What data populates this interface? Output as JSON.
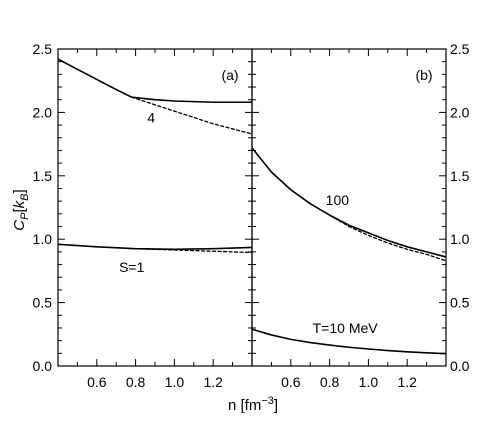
{
  "chart_data": [
    {
      "type": "line",
      "panel_label": "(a)",
      "xlabel": "n [fm⁻³]",
      "ylabel": "C_P [k_B]",
      "xlim": [
        0.4,
        1.4
      ],
      "ylim": [
        0.0,
        2.5
      ],
      "xticks": [
        0.6,
        0.8,
        1.0,
        1.2
      ],
      "yticks": [
        0.0,
        0.5,
        1.0,
        1.5,
        2.0,
        2.5
      ],
      "ytick_labels": [
        "0.0",
        "0.5",
        "1.0",
        "1.5",
        "2.0",
        "2.5"
      ],
      "xtick_labels": [
        "0.6",
        "0.8",
        "1.0",
        "1.2"
      ],
      "series": [
        {
          "label": "4",
          "style": "solid",
          "x": [
            0.4,
            0.5,
            0.6,
            0.7,
            0.78
          ],
          "y": [
            2.42,
            2.34,
            2.26,
            2.18,
            2.12
          ]
        },
        {
          "label": "4",
          "style": "solid",
          "x": [
            0.78,
            0.9,
            1.0,
            1.1,
            1.2,
            1.3,
            1.4
          ],
          "y": [
            2.12,
            2.1,
            2.09,
            2.085,
            2.08,
            2.08,
            2.08
          ]
        },
        {
          "label": "4",
          "style": "dashed",
          "x": [
            0.78,
            0.9,
            1.0,
            1.1,
            1.2,
            1.3,
            1.4
          ],
          "y": [
            2.12,
            2.06,
            2.01,
            1.96,
            1.91,
            1.87,
            1.83
          ]
        },
        {
          "label": "S=1",
          "style": "solid",
          "x": [
            0.4,
            0.6,
            0.8,
            1.0,
            1.2,
            1.4
          ],
          "y": [
            0.96,
            0.94,
            0.925,
            0.92,
            0.925,
            0.935
          ]
        },
        {
          "label": "S=1",
          "style": "dashed",
          "x": [
            0.8,
            1.0,
            1.2,
            1.4
          ],
          "y": [
            0.925,
            0.915,
            0.905,
            0.895
          ]
        }
      ],
      "annotations": [
        {
          "text": "4",
          "x": 0.88,
          "y": 1.96
        },
        {
          "text": "S=1",
          "x": 0.78,
          "y": 0.78
        }
      ]
    },
    {
      "type": "line",
      "panel_label": "(b)",
      "xlim": [
        0.4,
        1.4
      ],
      "ylim": [
        0.0,
        2.5
      ],
      "xticks": [
        0.6,
        0.8,
        1.0,
        1.2
      ],
      "yticks": [
        0.0,
        0.5,
        1.0,
        1.5,
        2.0,
        2.5
      ],
      "ytick_labels": [
        "0.0",
        "0.5",
        "1.0",
        "1.5",
        "2.0",
        "2.5"
      ],
      "xtick_labels": [
        "0.6",
        "0.8",
        "1.0",
        "1.2"
      ],
      "series": [
        {
          "label": "100",
          "style": "solid",
          "x": [
            0.4,
            0.5,
            0.6,
            0.7,
            0.8,
            0.9,
            1.0,
            1.1,
            1.2,
            1.3,
            1.4
          ],
          "y": [
            1.72,
            1.53,
            1.39,
            1.28,
            1.19,
            1.11,
            1.05,
            0.99,
            0.94,
            0.9,
            0.86
          ]
        },
        {
          "label": "100",
          "style": "dashed",
          "x": [
            0.8,
            0.9,
            1.0,
            1.1,
            1.2,
            1.3,
            1.4
          ],
          "y": [
            1.19,
            1.1,
            1.03,
            0.97,
            0.92,
            0.88,
            0.83
          ]
        },
        {
          "label": "T=10 MeV",
          "style": "solid",
          "x": [
            0.4,
            0.5,
            0.6,
            0.7,
            0.8,
            0.9,
            1.0,
            1.1,
            1.2,
            1.3,
            1.4
          ],
          "y": [
            0.29,
            0.245,
            0.21,
            0.185,
            0.165,
            0.148,
            0.134,
            0.122,
            0.112,
            0.104,
            0.097
          ]
        }
      ],
      "annotations": [
        {
          "text": "100",
          "x": 0.84,
          "y": 1.31
        },
        {
          "text": "T=10 MeV",
          "x": 0.88,
          "y": 0.3
        }
      ]
    }
  ]
}
